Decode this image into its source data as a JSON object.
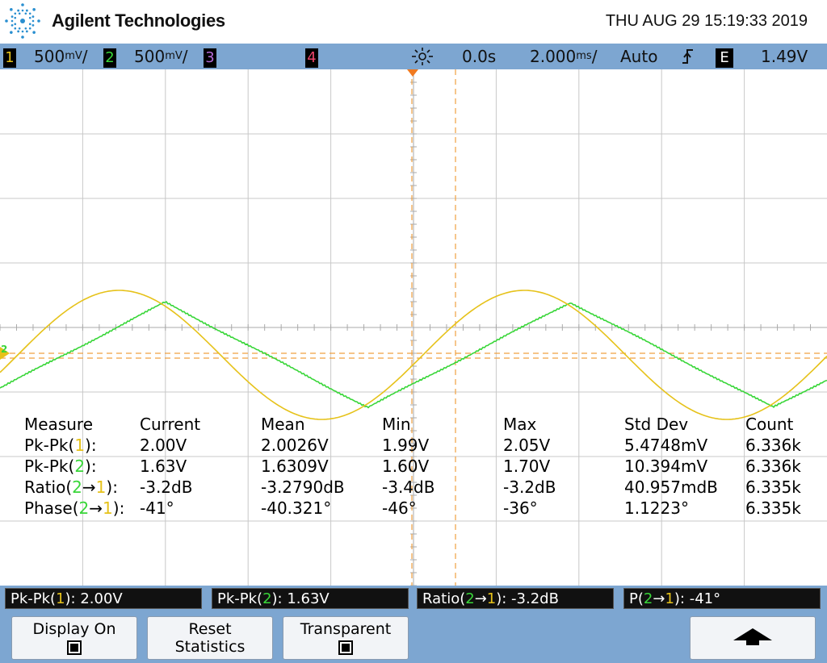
{
  "header": {
    "brand": "Agilent Technologies",
    "datetime": "THU AUG 29 15:19:33 2019",
    "logo_icon": "agilent-spark-icon"
  },
  "statusbar": {
    "ch1_num": "1",
    "ch1_scale": "500",
    "ch2_num": "2",
    "ch2_scale": "500",
    "ch3_num": "3",
    "ch4_num": "4",
    "delay": "0.0s",
    "timebase": "2.000",
    "mode": "Auto",
    "trigger_source": "E",
    "trigger_level": "1.49V",
    "colors": {
      "ch1": "#e6c21a",
      "ch2": "#39d639",
      "ch3": "#b36bd6",
      "ch4": "#e8436a"
    }
  },
  "scope": {
    "ground_marker": "2",
    "ch1": {
      "freq_div": 4.95,
      "phase_deg": 0,
      "amplitude_div": 2.0,
      "offset_div": 0.4
    },
    "ch2": {
      "amplitude_div": 1.63,
      "lag_deg": 41,
      "offset_div": 0.4
    }
  },
  "measurements": {
    "headers": [
      "Measure",
      "Current",
      "Mean",
      "Min",
      "Max",
      "Std Dev",
      "Count"
    ],
    "rows": [
      {
        "pre": "Pk-Pk(",
        "a": "1",
        "mid": "",
        "b": "",
        "post": "):",
        "current": "2.00V",
        "mean": "2.0026V",
        "min": "1.99V",
        "max": "2.05V",
        "std": "5.4748mV",
        "count": "6.336k"
      },
      {
        "pre": "Pk-Pk(",
        "a": "2",
        "mid": "",
        "b": "",
        "post": "):",
        "current": "1.63V",
        "mean": "1.6309V",
        "min": "1.60V",
        "max": "1.70V",
        "std": "10.394mV",
        "count": "6.336k"
      },
      {
        "pre": "Ratio(",
        "a": "2",
        "mid": "→",
        "b": "1",
        "post": "):",
        "current": "-3.2dB",
        "mean": "-3.2790dB",
        "min": "-3.4dB",
        "max": "-3.2dB",
        "std": "40.957mdB",
        "count": "6.335k"
      },
      {
        "pre": "Phase(",
        "a": "2",
        "mid": "→",
        "b": "1",
        "post": "):",
        "current": "-41°",
        "mean": "-40.321°",
        "min": "-46°",
        "max": "-36°",
        "std": "1.1223°",
        "count": "6.335k"
      }
    ]
  },
  "readouts": [
    {
      "pre": "Pk-Pk(",
      "a": "1",
      "mid": "",
      "b": "",
      "post": "): 2.00V"
    },
    {
      "pre": "Pk-Pk(",
      "a": "2",
      "mid": "",
      "b": "",
      "post": "): 1.63V"
    },
    {
      "pre": "Ratio(",
      "a": "2",
      "mid": "→",
      "b": "1",
      "post": "): -3.2dB"
    },
    {
      "pre": "P(",
      "a": "2",
      "mid": "→",
      "b": "1",
      "post": "): -41°"
    }
  ],
  "softkeys": {
    "display_on": "Display On",
    "reset_line1": "Reset",
    "reset_line2": "Statistics",
    "transparent": "Transparent",
    "up_icon": "up-arrow-icon"
  }
}
